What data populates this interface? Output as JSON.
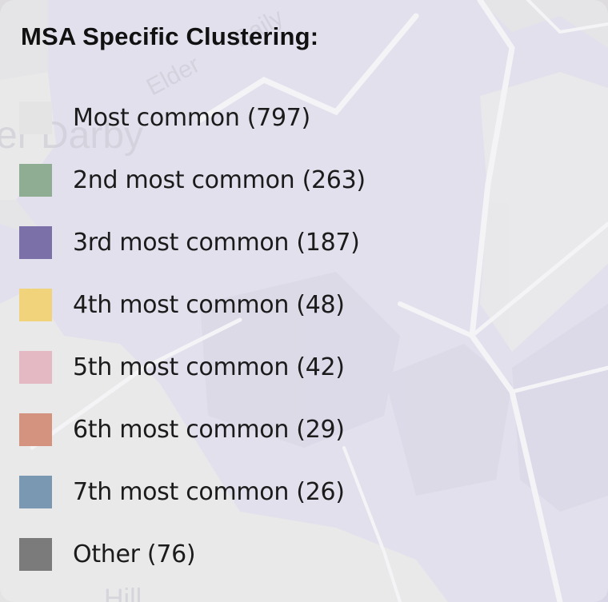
{
  "map": {
    "place_labels": [
      "Elder",
      "Baily",
      "er Darby",
      "Hill"
    ]
  },
  "legend": {
    "title": "MSA Specific Clustering:",
    "items": [
      {
        "label": "Most common (797)",
        "color": "#e4e4e4",
        "count": 797
      },
      {
        "label": "2nd most common (263)",
        "color": "#8fad93",
        "count": 263
      },
      {
        "label": "3rd most common (187)",
        "color": "#7b70a8",
        "count": 187
      },
      {
        "label": "4th most common (48)",
        "color": "#f1d37b",
        "count": 48
      },
      {
        "label": "5th most common (42)",
        "color": "#e5b9c4",
        "count": 42
      },
      {
        "label": "6th most common (29)",
        "color": "#d4937e",
        "count": 29
      },
      {
        "label": "7th most common (26)",
        "color": "#7b98b3",
        "count": 26
      },
      {
        "label": "Other (76)",
        "color": "#7b7b7b",
        "count": 76
      }
    ]
  }
}
